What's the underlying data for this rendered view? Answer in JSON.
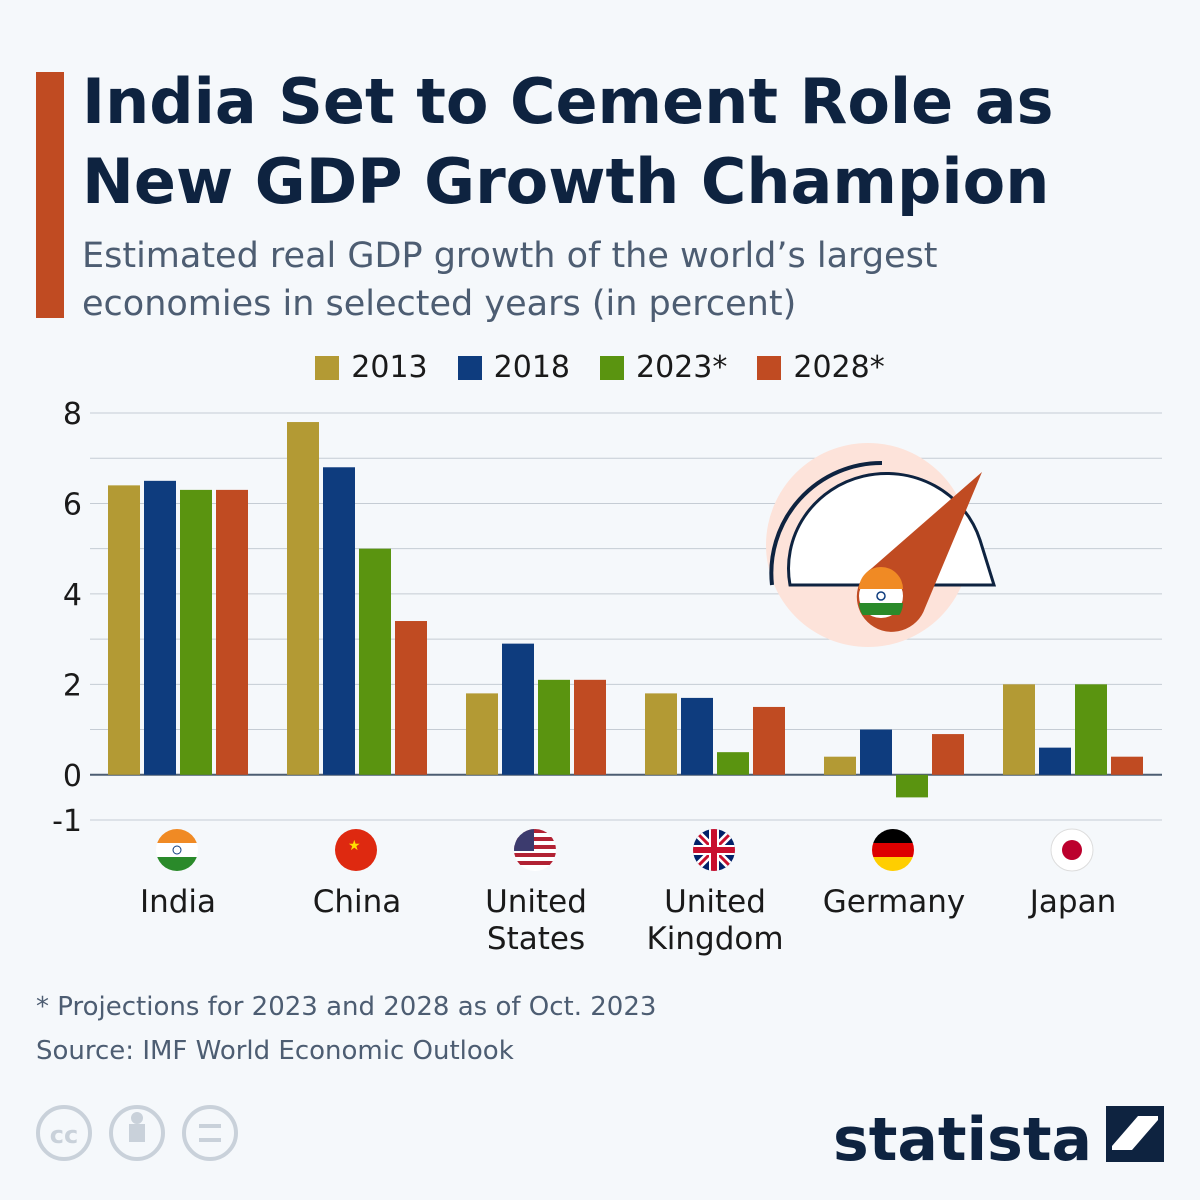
{
  "chart_data": {
    "type": "bar",
    "title": "India Set to Cement Role as New GDP Growth Champion",
    "subtitle": "Estimated real GDP growth of the world’s largest economies in selected years (in percent)",
    "categories": [
      "India",
      "China",
      "United States",
      "United Kingdom",
      "Germany",
      "Japan"
    ],
    "series": [
      {
        "name": "2013",
        "color": "#b39a34",
        "values": [
          6.4,
          7.8,
          1.8,
          1.8,
          0.4,
          2.0
        ]
      },
      {
        "name": "2018",
        "color": "#0e3c7e",
        "values": [
          6.5,
          6.8,
          2.9,
          1.7,
          1.0,
          0.6
        ]
      },
      {
        "name": "2023*",
        "color": "#5a9410",
        "values": [
          6.3,
          5.0,
          2.1,
          0.5,
          -0.5,
          2.0
        ]
      },
      {
        "name": "2028*",
        "color": "#c04b22",
        "values": [
          6.3,
          3.4,
          2.1,
          1.5,
          0.9,
          0.4
        ]
      }
    ],
    "ylim": [
      -1,
      8
    ],
    "yticks": [
      -1,
      0,
      2,
      4,
      6,
      8
    ],
    "minor_yticks": [
      1,
      3,
      5,
      7
    ],
    "grid": true,
    "footnote": "* Projections for 2023 and 2028 as of Oct. 2023",
    "source": "Source: IMF World Economic Outlook",
    "logo": "statista"
  }
}
